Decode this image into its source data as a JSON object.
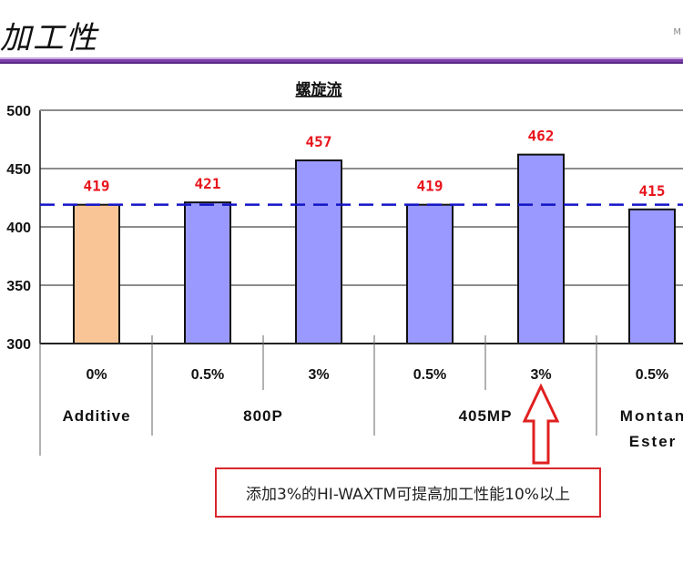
{
  "header": {
    "title": "加工性",
    "logo_text": "M"
  },
  "chart_data": {
    "type": "bar",
    "title": "螺旋流",
    "ylim": [
      300,
      500
    ],
    "yticks": [
      300,
      350,
      400,
      450,
      500
    ],
    "grid": true,
    "reference_line": 419,
    "bars": [
      {
        "value": 419,
        "label": "419",
        "concentration": "0%",
        "color": "#f9c596"
      },
      {
        "value": 421,
        "label": "421",
        "concentration": "0.5%",
        "color": "#9999ff"
      },
      {
        "value": 457,
        "label": "457",
        "concentration": "3%",
        "color": "#9999ff"
      },
      {
        "value": 419,
        "label": "419",
        "concentration": "0.5%",
        "color": "#9999ff"
      },
      {
        "value": 462,
        "label": "462",
        "concentration": "3%",
        "color": "#9999ff"
      },
      {
        "value": 415,
        "label": "415",
        "concentration": "0.5%",
        "color": "#9999ff"
      }
    ],
    "groups": [
      {
        "lines": [
          "Additive"
        ]
      },
      {
        "lines": [
          "800P"
        ]
      },
      {
        "lines": [
          "405MP"
        ]
      },
      {
        "lines": [
          "Montan",
          "Ester"
        ]
      }
    ],
    "colors": {
      "value_label": "#e8141c",
      "reference_line": "#1414c8",
      "arrow": "#e02020"
    }
  },
  "annotation": {
    "text": "添加3%的HI-WAXTM可提高加工性能10%以上"
  }
}
